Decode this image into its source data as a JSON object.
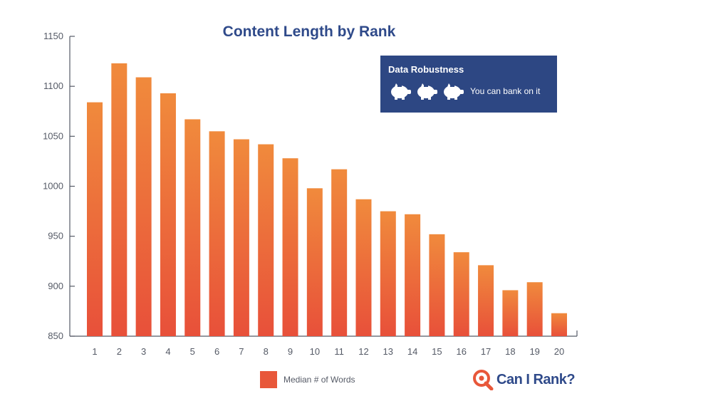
{
  "chart_data": {
    "type": "bar",
    "title": "Content Length by Rank",
    "categories": [
      "1",
      "2",
      "3",
      "4",
      "5",
      "6",
      "7",
      "8",
      "9",
      "10",
      "11",
      "12",
      "13",
      "14",
      "15",
      "16",
      "17",
      "18",
      "19",
      "20"
    ],
    "series": [
      {
        "name": "Median # of Words",
        "values": [
          1084,
          1123,
          1109,
          1093,
          1067,
          1055,
          1047,
          1042,
          1028,
          998,
          1017,
          987,
          975,
          972,
          952,
          934,
          921,
          896,
          904,
          873
        ]
      }
    ],
    "ylim": [
      850,
      1150
    ],
    "yticks": [
      850,
      900,
      950,
      1000,
      1050,
      1100,
      1150
    ],
    "xlabel": "",
    "ylabel": "",
    "grid": false,
    "legend_position": "bottom",
    "colors": {
      "bar_top": "#f08a3c",
      "bar_bottom": "#e8503a",
      "title": "#2f4a8a",
      "axis": "#555a66"
    }
  },
  "badge": {
    "title": "Data Robustness",
    "text": "You can bank on it",
    "icon": "piggy-bank-icon",
    "icon_count": 3,
    "background": "#2d4783"
  },
  "legend": {
    "label": "Median # of Words",
    "color": "#e8573a"
  },
  "logo": {
    "text": "Can I Rank",
    "mark": "?",
    "icon": "magnifier-logo-icon"
  }
}
